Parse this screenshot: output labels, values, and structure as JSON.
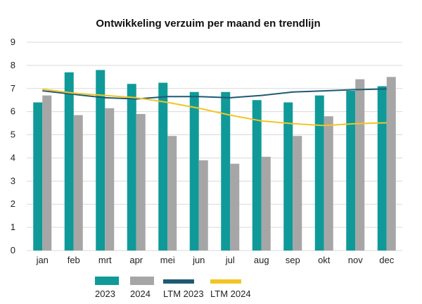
{
  "chart_data": {
    "type": "bar",
    "title": "Ontwikkeling verzuim per maand en trendlijn",
    "xlabel": "",
    "ylabel": "",
    "ylim": [
      0,
      9
    ],
    "yticks": [
      0,
      1,
      2,
      3,
      4,
      5,
      6,
      7,
      8,
      9
    ],
    "grid": true,
    "legend_position": "bottom",
    "categories": [
      "jan",
      "feb",
      "mrt",
      "apr",
      "mei",
      "jun",
      "jul",
      "aug",
      "sep",
      "okt",
      "nov",
      "dec"
    ],
    "series": [
      {
        "name": "2023",
        "kind": "bar",
        "color": "#0f9a99",
        "values": [
          6.4,
          7.7,
          7.8,
          7.2,
          7.25,
          6.85,
          6.85,
          6.5,
          6.4,
          6.7,
          6.9,
          7.1
        ]
      },
      {
        "name": "2024",
        "kind": "bar",
        "color": "#a6a6a6",
        "values": [
          6.7,
          5.85,
          6.15,
          5.9,
          4.95,
          3.9,
          3.75,
          4.05,
          4.95,
          5.8,
          7.4,
          7.5
        ]
      },
      {
        "name": "LTM 2023",
        "kind": "line",
        "color": "#1f5a73",
        "values": [
          6.9,
          6.75,
          6.6,
          6.55,
          6.65,
          6.65,
          6.6,
          6.7,
          6.85,
          6.9,
          6.95,
          6.98
        ]
      },
      {
        "name": "LTM 2024",
        "kind": "line",
        "color": "#f2c525",
        "values": [
          6.97,
          6.8,
          6.7,
          6.6,
          6.4,
          6.15,
          5.85,
          5.6,
          5.48,
          5.4,
          5.48,
          5.52
        ]
      }
    ]
  }
}
